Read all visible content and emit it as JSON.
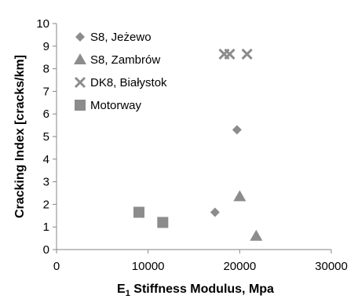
{
  "chart_data": {
    "type": "scatter",
    "title": "",
    "xlabel_main": "E",
    "xlabel_sub": "1",
    "xlabel_rest": " Stiffness Modulus, Mpa",
    "ylabel": "Cracking Index [cracks/km]",
    "xlim": [
      0,
      30000
    ],
    "ylim": [
      0,
      10
    ],
    "x_ticks": [
      0,
      10000,
      20000,
      30000
    ],
    "y_ticks": [
      0,
      1,
      2,
      3,
      4,
      5,
      6,
      7,
      8,
      9,
      10
    ],
    "grid": false,
    "legend_position": "top-left",
    "marker_color": "#8c8c8c",
    "series": [
      {
        "name": "S8, Jeżewo",
        "marker": "diamond",
        "points": [
          [
            17300,
            1.65
          ],
          [
            19700,
            5.3
          ]
        ]
      },
      {
        "name": "S8, Zambrów",
        "marker": "triangle",
        "points": [
          [
            20000,
            2.35
          ],
          [
            21800,
            0.6
          ]
        ]
      },
      {
        "name": "DK8, Białystok",
        "marker": "x",
        "points": [
          [
            18300,
            8.65
          ],
          [
            18900,
            8.65
          ],
          [
            20800,
            8.65
          ]
        ]
      },
      {
        "name": "Motorway",
        "marker": "square",
        "points": [
          [
            9000,
            1.65
          ],
          [
            11600,
            1.2
          ]
        ]
      }
    ]
  }
}
